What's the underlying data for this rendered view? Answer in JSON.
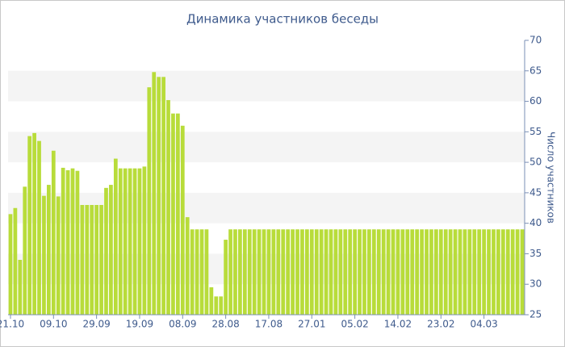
{
  "chart_data": {
    "type": "bar",
    "title": "Динамика участников беседы",
    "y_label": "Число участников",
    "categories": [
      "21.10",
      null,
      null,
      null,
      null,
      null,
      null,
      null,
      null,
      "09.10",
      null,
      null,
      null,
      null,
      null,
      null,
      null,
      null,
      "29.09",
      null,
      null,
      null,
      null,
      null,
      null,
      null,
      null,
      "19.09",
      null,
      null,
      null,
      null,
      null,
      null,
      null,
      null,
      "08.09",
      null,
      null,
      null,
      null,
      null,
      null,
      null,
      null,
      "28.08",
      null,
      null,
      null,
      null,
      null,
      null,
      null,
      null,
      "17.08",
      null,
      null,
      null,
      null,
      null,
      null,
      null,
      null,
      "27.01",
      null,
      null,
      null,
      null,
      null,
      null,
      null,
      null,
      "05.02",
      null,
      null,
      null,
      null,
      null,
      null,
      null,
      null,
      "14.02",
      null,
      null,
      null,
      null,
      null,
      null,
      null,
      null,
      "23.02",
      null,
      null,
      null,
      null,
      null,
      null,
      null,
      null,
      "04.03",
      null,
      null,
      null,
      null,
      null,
      null,
      null,
      null
    ],
    "values": [
      41.5,
      42.5,
      34,
      46,
      54.3,
      54.8,
      53.5,
      44.5,
      46.3,
      51.9,
      44.4,
      49.1,
      48.7,
      49,
      48.6,
      43,
      43,
      43,
      43,
      43,
      45.8,
      46.3,
      50.6,
      49,
      49,
      49,
      49,
      49,
      49.3,
      62.3,
      64.8,
      64,
      64,
      60.2,
      58,
      58,
      56,
      41,
      39,
      39,
      39,
      39,
      29.5,
      28,
      28,
      37.3,
      39,
      39,
      39,
      39,
      39,
      39,
      39,
      39,
      39,
      39,
      39,
      39,
      39,
      39,
      39,
      39,
      39,
      39,
      39,
      39,
      39,
      39,
      39,
      39,
      39,
      39,
      39,
      39,
      39,
      39,
      39,
      39,
      39,
      39,
      39,
      39,
      39,
      39,
      39,
      39,
      39,
      39,
      39,
      39,
      39,
      39,
      39,
      39,
      39,
      39,
      39,
      39,
      39,
      39,
      39,
      39,
      39,
      39,
      39,
      39,
      39,
      39
    ],
    "color": "#b8dc3a",
    "ylim": [
      25,
      70
    ],
    "yticks": [
      25,
      30,
      35,
      40,
      45,
      50,
      55,
      60,
      65,
      70
    ],
    "grid": true
  }
}
